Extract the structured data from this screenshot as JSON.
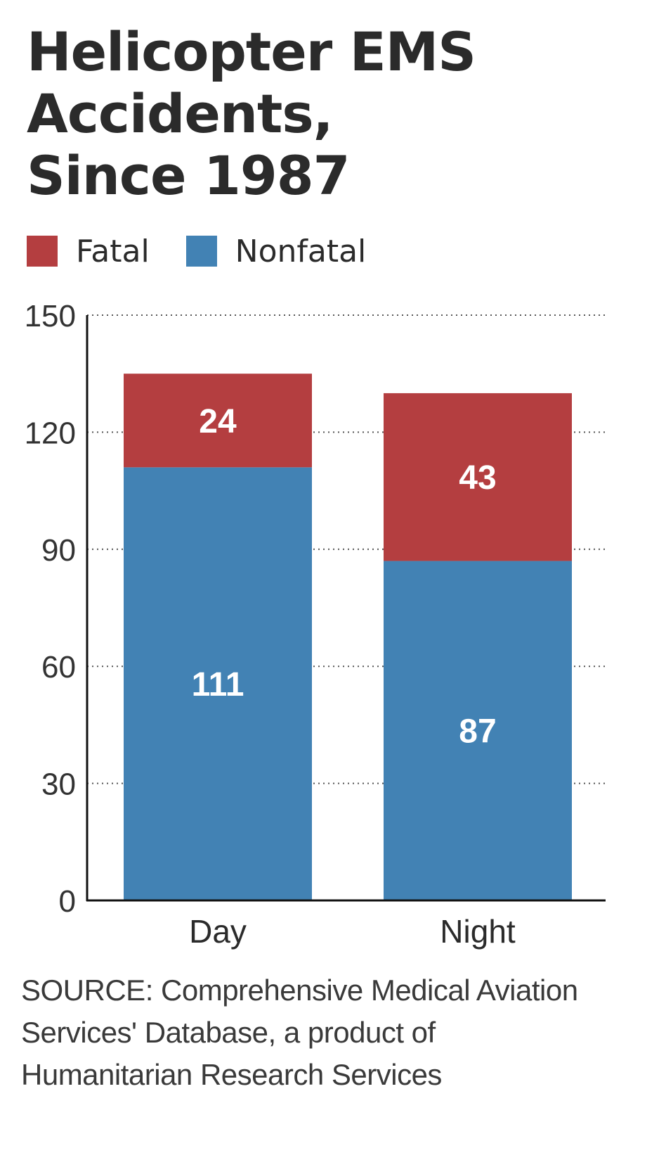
{
  "title_lines": [
    "Helicopter EMS",
    "Accidents,",
    "Since 1987"
  ],
  "legend": [
    {
      "label": "Fatal",
      "color": "#b43e40"
    },
    {
      "label": "Nonfatal",
      "color": "#4282b4"
    }
  ],
  "chart_data": {
    "type": "bar",
    "stacked": true,
    "title": "Helicopter EMS Accidents, Since 1987",
    "categories": [
      "Day",
      "Night"
    ],
    "series": [
      {
        "name": "Nonfatal",
        "color": "#4282b4",
        "values": [
          111,
          87
        ]
      },
      {
        "name": "Fatal",
        "color": "#b43e40",
        "values": [
          24,
          43
        ]
      }
    ],
    "ylim": [
      0,
      150
    ],
    "yticks": [
      0,
      30,
      60,
      90,
      120,
      150
    ],
    "grid": true,
    "grid_style": "dotted",
    "legend_position": "top-left"
  },
  "source_lines": [
    "SOURCE: Comprehensive Medical Aviation",
    "Services' Database, a product of",
    "Humanitarian Research Services"
  ]
}
